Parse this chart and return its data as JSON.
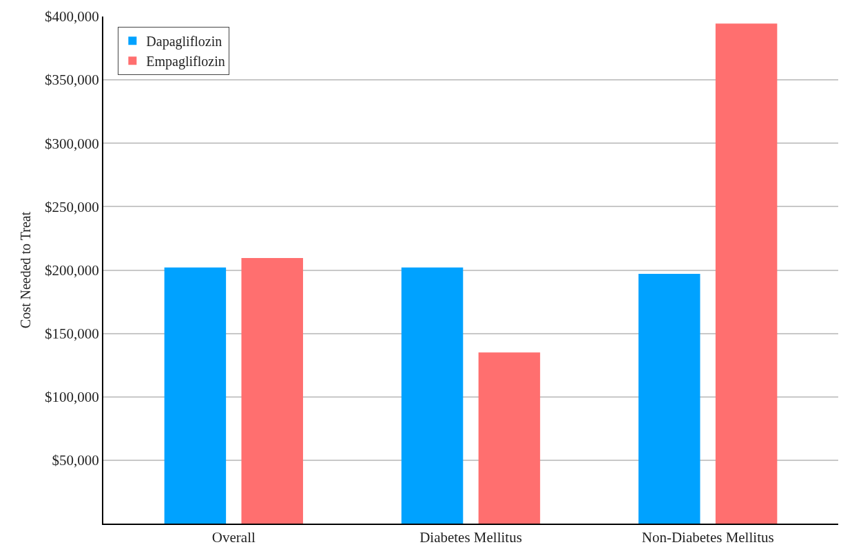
{
  "chart_data": {
    "type": "bar",
    "ylabel": "Cost Needed to Treat",
    "categories": [
      "Overall",
      "Diabetes Mellitus",
      "Non-Diabetes Mellitus"
    ],
    "series": [
      {
        "name": "Dapagliflozin",
        "color": "#00a2ff",
        "values": [
          202000,
          202000,
          197000
        ]
      },
      {
        "name": "Empagliflozin",
        "color": "#ff6f6f",
        "values": [
          209500,
          135000,
          394500
        ]
      }
    ],
    "ylim": [
      0,
      400000
    ],
    "yticks": [
      {
        "value": 50000,
        "label": "$50,000"
      },
      {
        "value": 100000,
        "label": "$100,000"
      },
      {
        "value": 150000,
        "label": "$150,000"
      },
      {
        "value": 200000,
        "label": "$200,000"
      },
      {
        "value": 250000,
        "label": "$250,000"
      },
      {
        "value": 300000,
        "label": "$300,000"
      },
      {
        "value": 350000,
        "label": "$350,000"
      },
      {
        "value": 400000,
        "label": "$400,000"
      }
    ],
    "grid": "y",
    "legend": "top left"
  }
}
